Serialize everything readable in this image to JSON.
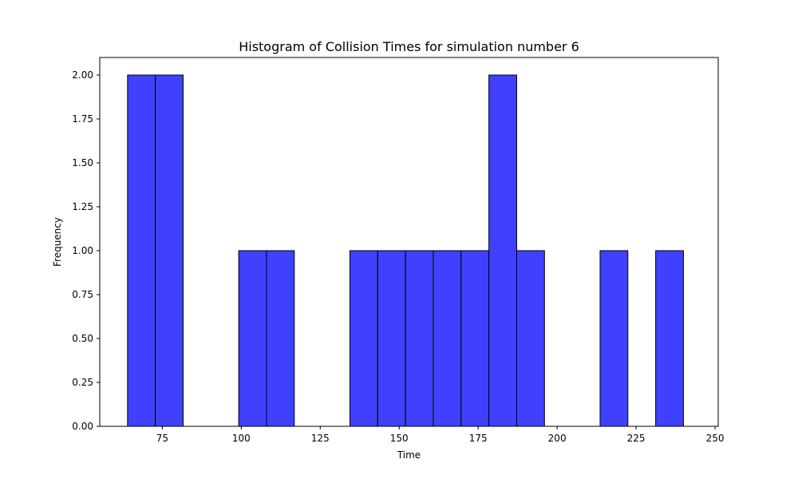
{
  "chart_data": {
    "type": "bar",
    "title": "Histogram of Collision Times for simulation number 6",
    "xlabel": "Time",
    "ylabel": "Frequency",
    "xlim": [
      55.2,
      251.0
    ],
    "ylim": [
      0,
      2.1
    ],
    "grid": false,
    "bar_color": "#4040ff",
    "edge_color": "#000000",
    "bin_width": 8.8,
    "bins": [
      {
        "x0": 64.0,
        "x1": 72.8,
        "value": 2
      },
      {
        "x0": 72.8,
        "x1": 81.6,
        "value": 2
      },
      {
        "x0": 81.6,
        "x1": 90.4,
        "value": 0
      },
      {
        "x0": 90.4,
        "x1": 99.2,
        "value": 0
      },
      {
        "x0": 99.2,
        "x1": 108.0,
        "value": 1
      },
      {
        "x0": 108.0,
        "x1": 116.8,
        "value": 1
      },
      {
        "x0": 116.8,
        "x1": 125.6,
        "value": 0
      },
      {
        "x0": 125.6,
        "x1": 134.4,
        "value": 0
      },
      {
        "x0": 134.4,
        "x1": 143.2,
        "value": 1
      },
      {
        "x0": 143.2,
        "x1": 152.0,
        "value": 1
      },
      {
        "x0": 152.0,
        "x1": 160.8,
        "value": 1
      },
      {
        "x0": 160.8,
        "x1": 169.6,
        "value": 1
      },
      {
        "x0": 169.6,
        "x1": 178.4,
        "value": 1
      },
      {
        "x0": 178.4,
        "x1": 187.2,
        "value": 2
      },
      {
        "x0": 187.2,
        "x1": 196.0,
        "value": 1
      },
      {
        "x0": 196.0,
        "x1": 204.8,
        "value": 0
      },
      {
        "x0": 204.8,
        "x1": 213.6,
        "value": 0
      },
      {
        "x0": 213.6,
        "x1": 222.4,
        "value": 1
      },
      {
        "x0": 222.4,
        "x1": 231.2,
        "value": 0
      },
      {
        "x0": 231.2,
        "x1": 240.0,
        "value": 1
      }
    ],
    "x_ticks": [
      75,
      100,
      125,
      150,
      175,
      200,
      225,
      250
    ],
    "y_ticks": [
      "0.00",
      "0.25",
      "0.50",
      "0.75",
      "1.00",
      "1.25",
      "1.50",
      "1.75",
      "2.00"
    ]
  }
}
